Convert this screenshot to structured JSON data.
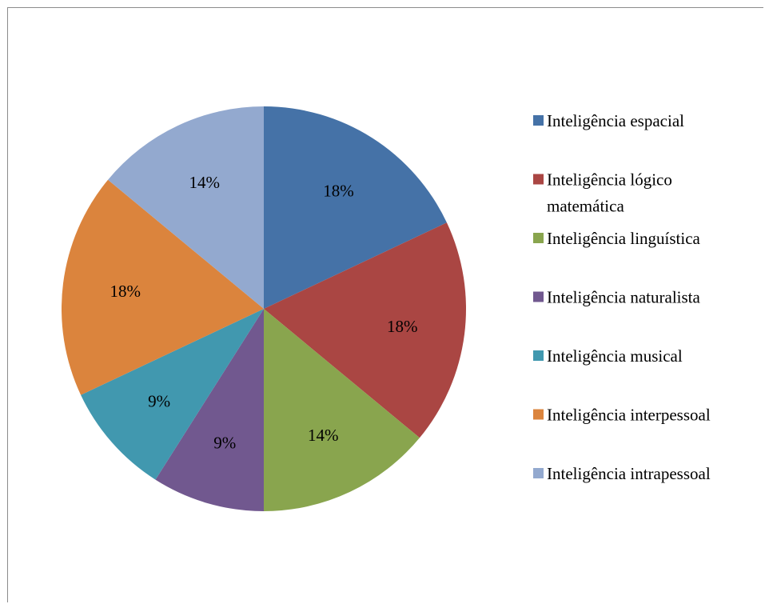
{
  "chart_data": {
    "type": "pie",
    "categories": [
      "Inteligência espacial",
      "Inteligência lógico matemática",
      "Inteligência linguística",
      "Inteligência naturalista",
      "Inteligência musical",
      "Inteligência interpessoal",
      "Inteligência intrapessoal"
    ],
    "values": [
      18,
      18,
      14,
      9,
      9,
      18,
      14
    ],
    "data_labels": [
      "18%",
      "18%",
      "14%",
      "9%",
      "9%",
      "18%",
      "14%"
    ],
    "legend_lines": [
      [
        "Inteligência espacial"
      ],
      [
        "Inteligência lógico",
        "matemática"
      ],
      [
        "Inteligência linguística"
      ],
      [
        "Inteligência naturalista"
      ],
      [
        "Inteligência musical"
      ],
      [
        "Inteligência interpessoal"
      ],
      [
        "Inteligência intrapessoal"
      ]
    ],
    "colors": [
      "#4572a7",
      "#aa4643",
      "#89a54e",
      "#71588f",
      "#4198af",
      "#db843d",
      "#93a9cf"
    ],
    "legend_position": "right",
    "start_angle": "12 o'clock",
    "direction": "clockwise"
  }
}
